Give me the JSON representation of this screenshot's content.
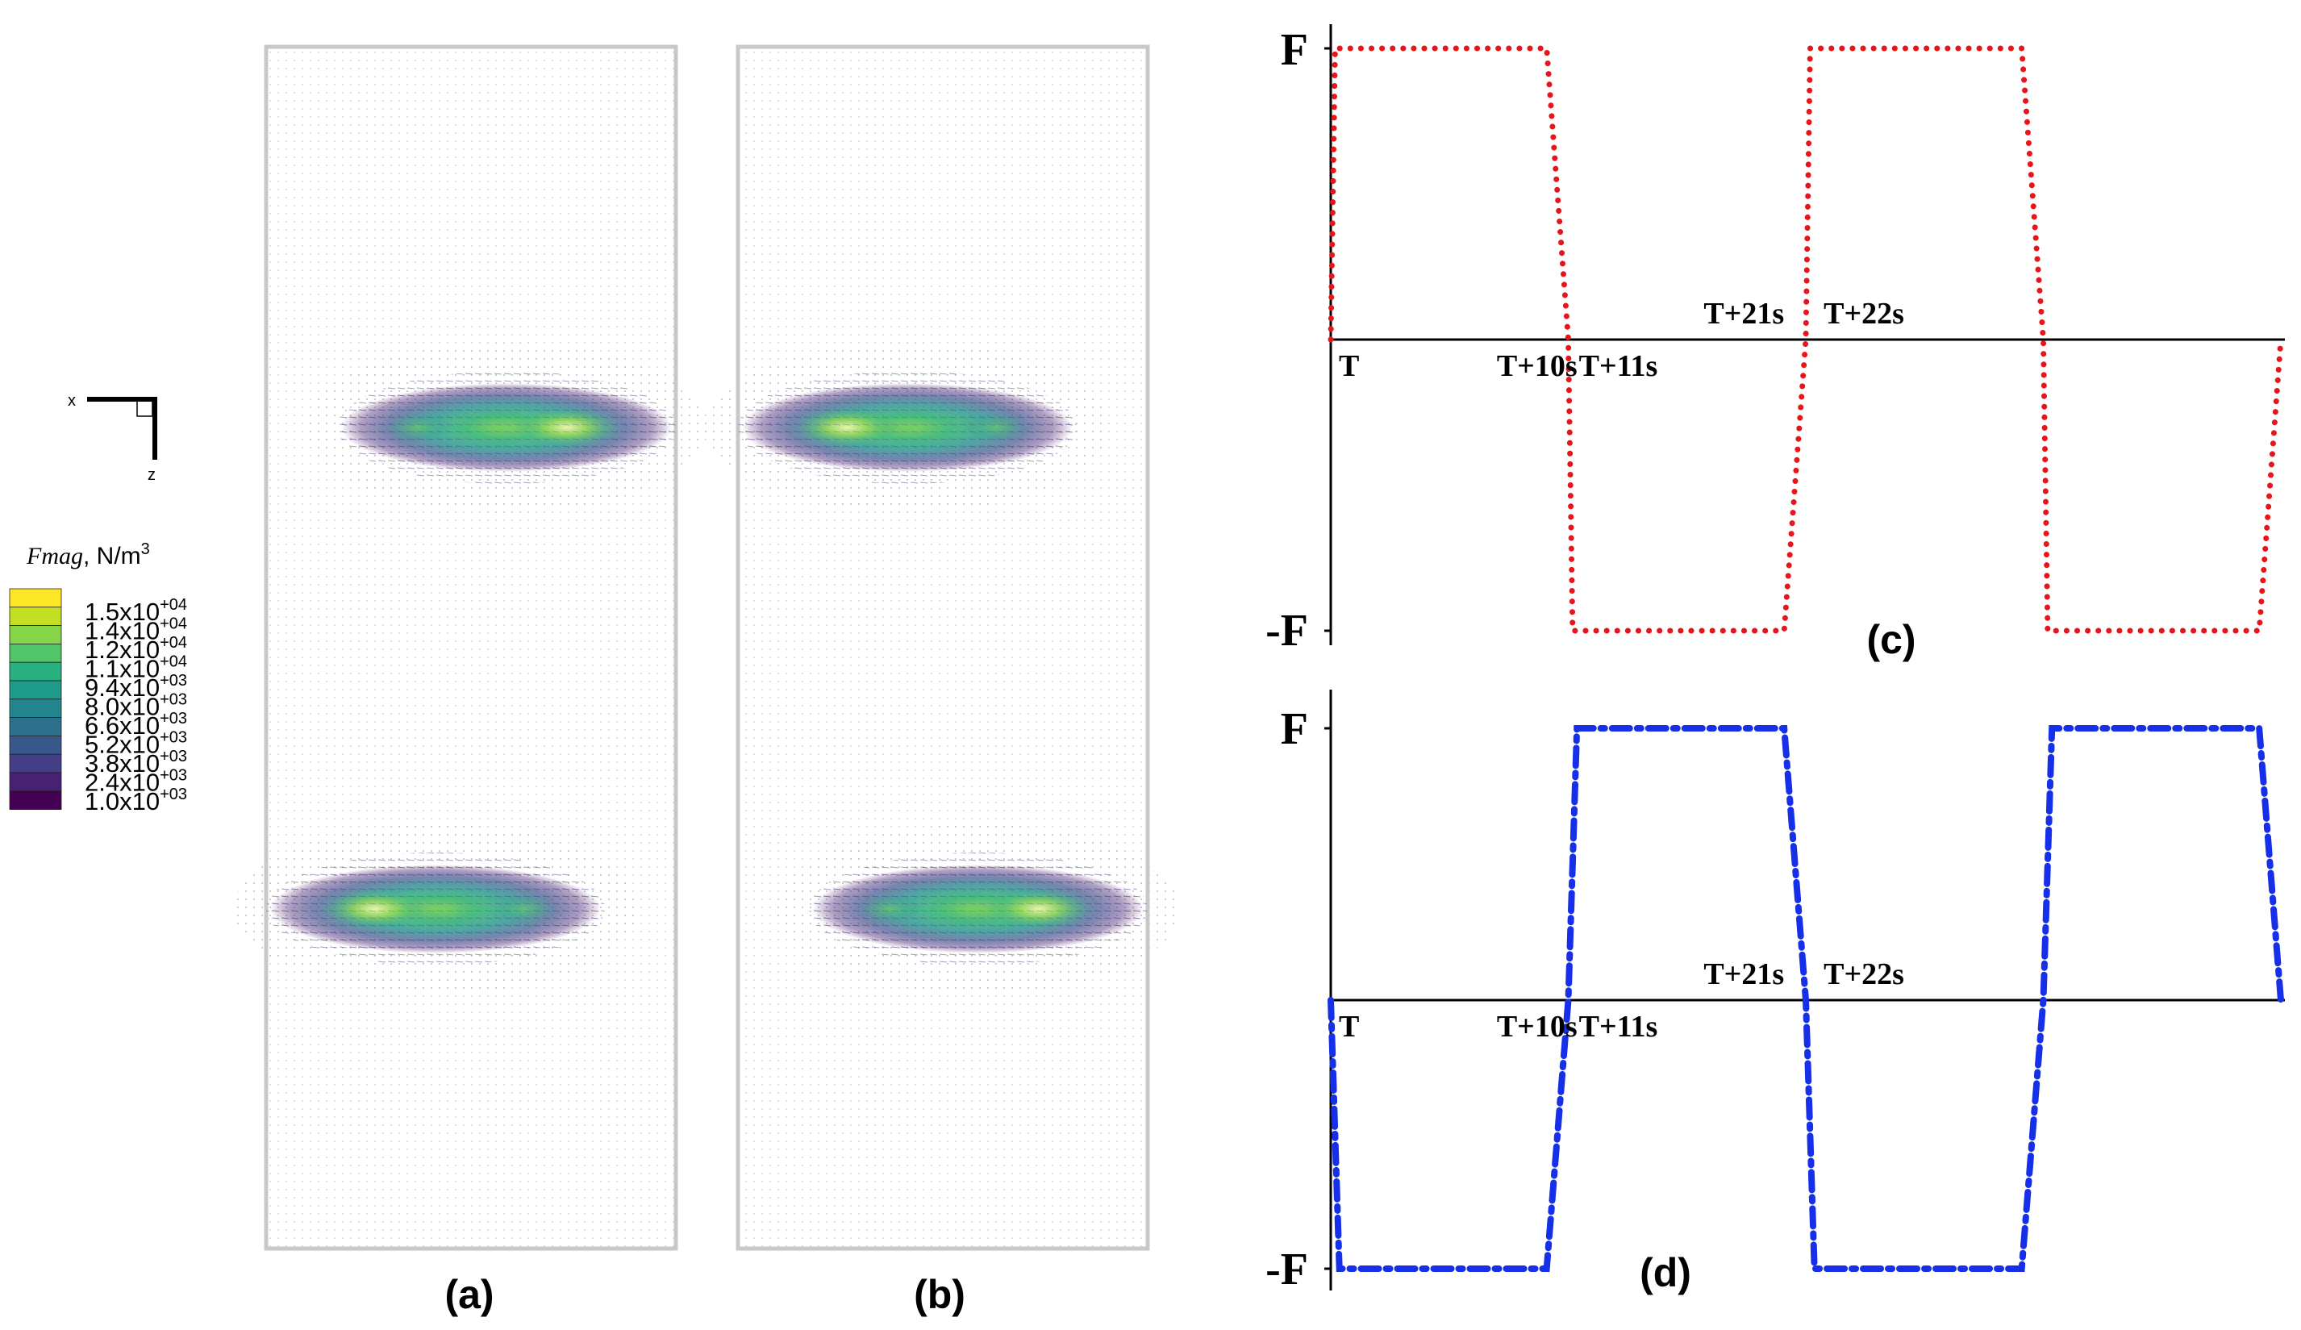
{
  "legend": {
    "title_italic": "Fmag",
    "title_rest": ", N/m",
    "title_sup": "3",
    "colors": [
      "#fde725",
      "#c2df23",
      "#86d549",
      "#52c569",
      "#2ab07f",
      "#1e9b8a",
      "#25858e",
      "#2d708e",
      "#38588c",
      "#433e85",
      "#482173",
      "#440154"
    ],
    "levels": [
      {
        "mant": "1.5x10",
        "exp": "+04"
      },
      {
        "mant": "1.4x10",
        "exp": "+04"
      },
      {
        "mant": "1.2x10",
        "exp": "+04"
      },
      {
        "mant": "1.1x10",
        "exp": "+04"
      },
      {
        "mant": "9.4x10",
        "exp": "+03"
      },
      {
        "mant": "8.0x10",
        "exp": "+03"
      },
      {
        "mant": "6.6x10",
        "exp": "+03"
      },
      {
        "mant": "5.2x10",
        "exp": "+03"
      },
      {
        "mant": "3.8x10",
        "exp": "+03"
      },
      {
        "mant": "2.4x10",
        "exp": "+03"
      },
      {
        "mant": "1.0x10",
        "exp": "+03"
      }
    ]
  },
  "axes_triad": {
    "x_label": "x",
    "z_label": "z"
  },
  "panels": {
    "a": {
      "label": "(a)",
      "lobes": [
        {
          "row": "top",
          "side": "right"
        },
        {
          "row": "bottom",
          "side": "left"
        }
      ]
    },
    "b": {
      "label": "(b)",
      "lobes": [
        {
          "row": "top",
          "side": "left"
        },
        {
          "row": "bottom",
          "side": "right"
        }
      ]
    }
  },
  "chart_data": [
    {
      "type": "line",
      "panel": "(c)",
      "color": "#e8141b",
      "line_style": "dotted",
      "y_labels": {
        "top": "F",
        "bottom": "-F"
      },
      "x": [
        0,
        0.2,
        10,
        11,
        11.2,
        21,
        22,
        22.2,
        32,
        33,
        33.2,
        43,
        44
      ],
      "y": [
        0,
        1,
        1,
        0,
        -1,
        -1,
        0,
        1,
        1,
        0,
        -1,
        -1,
        0
      ],
      "ylim": [
        -1,
        1
      ],
      "annotations": [
        {
          "text": "T",
          "x": 0,
          "pos": "below"
        },
        {
          "text": "T+10s",
          "x": 10,
          "pos": "below"
        },
        {
          "text": "T+11s",
          "x": 11,
          "pos": "below"
        },
        {
          "text": "T+21s",
          "x": 21,
          "pos": "above"
        },
        {
          "text": "T+22s",
          "x": 22,
          "pos": "above"
        }
      ]
    },
    {
      "type": "line",
      "panel": "(d)",
      "color": "#1530e8",
      "line_style": "dash-dot",
      "y_labels": {
        "top": "F",
        "bottom": "-F"
      },
      "x": [
        0,
        0.4,
        10,
        11,
        11.4,
        21,
        22,
        22.4,
        32,
        33,
        33.4,
        43,
        44
      ],
      "y": [
        0,
        -1,
        -1,
        0,
        1,
        1,
        0,
        -1,
        -1,
        0,
        1,
        1,
        0
      ],
      "ylim": [
        -1,
        1
      ],
      "annotations": [
        {
          "text": "T",
          "x": 0,
          "pos": "below"
        },
        {
          "text": "T+10s",
          "x": 10,
          "pos": "below"
        },
        {
          "text": "T+11s",
          "x": 11,
          "pos": "below"
        },
        {
          "text": "T+21s",
          "x": 21,
          "pos": "above"
        },
        {
          "text": "T+22s",
          "x": 22,
          "pos": "above"
        }
      ]
    }
  ]
}
